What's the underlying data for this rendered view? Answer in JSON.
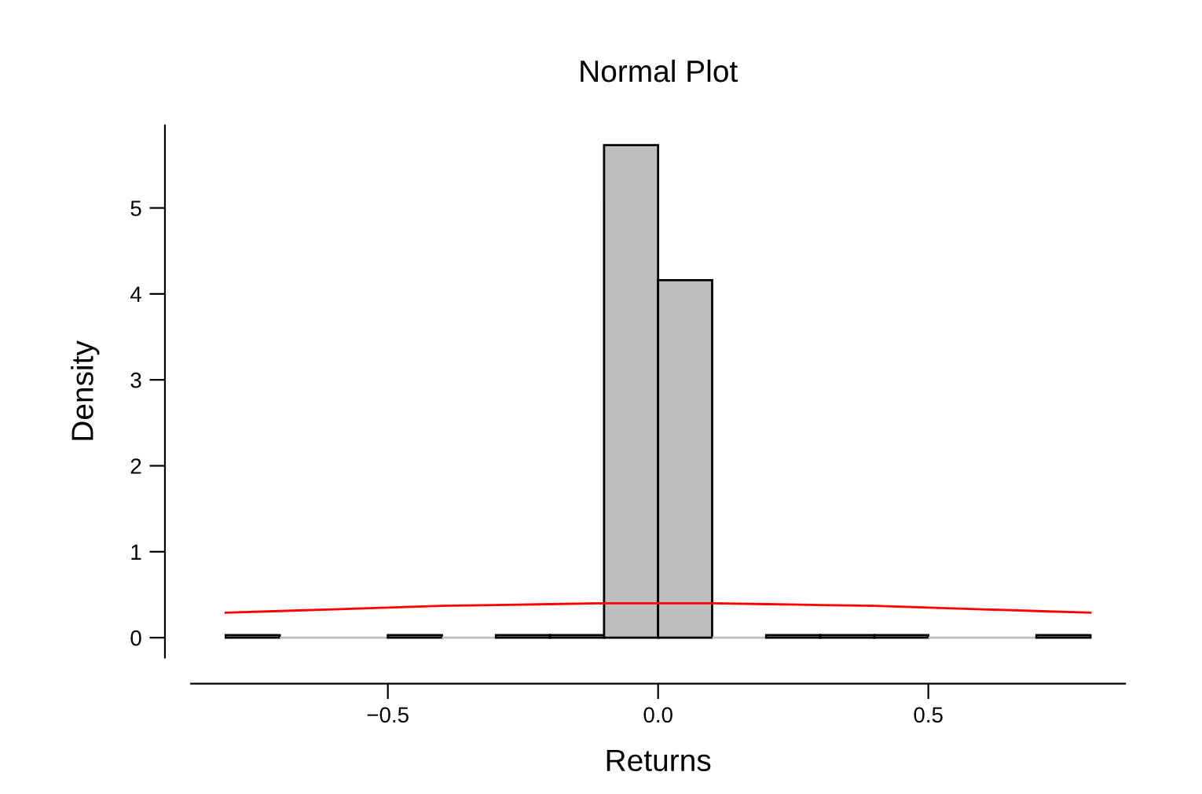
{
  "chart_data": {
    "type": "histogram",
    "title": "Normal Plot",
    "xlabel": "Returns",
    "ylabel": "Density",
    "bins": [
      -0.8,
      -0.7,
      -0.6,
      -0.5,
      -0.4,
      -0.3,
      -0.2,
      -0.1,
      0.0,
      0.1,
      0.2,
      0.3,
      0.4,
      0.5,
      0.6,
      0.7,
      0.8
    ],
    "values": [
      0.03,
      0,
      0,
      0.03,
      0,
      0.03,
      0.03,
      5.73,
      4.16,
      0,
      0.03,
      0.03,
      0.03,
      0,
      0,
      0.03
    ],
    "color": "#bebebe",
    "series": [
      {
        "type": "line",
        "color": "#ff0000",
        "x": [
          -0.8,
          -0.7,
          -0.6,
          -0.5,
          -0.4,
          -0.3,
          -0.2,
          -0.1,
          0.0,
          0.1,
          0.2,
          0.3,
          0.4,
          0.5,
          0.6,
          0.7,
          0.8
        ],
        "values": [
          0.29,
          0.31,
          0.33,
          0.35,
          0.37,
          0.38,
          0.39,
          0.4,
          0.4,
          0.4,
          0.39,
          0.38,
          0.37,
          0.35,
          0.33,
          0.31,
          0.29
        ]
      }
    ],
    "xlim": [
      -0.864,
      0.864
    ],
    "ylim": [
      -0.23,
      5.96
    ],
    "xticks": [
      {
        "value": -0.5,
        "label": "−0.5"
      },
      {
        "value": 0,
        "label": "0.0"
      },
      0.5
    ],
    "yticks": [
      0,
      1,
      2,
      3,
      4,
      5
    ],
    "grid": false,
    "legend": false
  }
}
